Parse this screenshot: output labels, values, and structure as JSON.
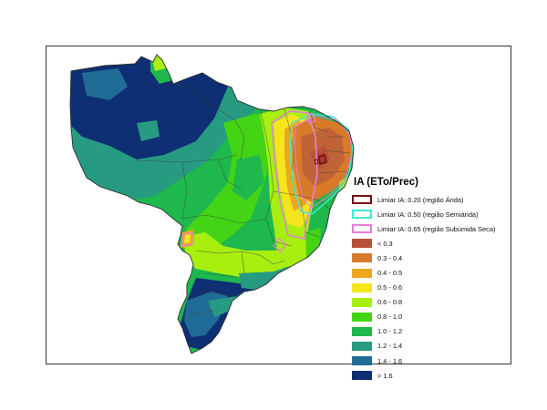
{
  "legend": {
    "title": "IA (ETo/Prec)",
    "thresholds": [
      {
        "label": "Limiar IA: 0.20 (região Árida)",
        "color": "#7a0f14"
      },
      {
        "label": "Limiar IA: 0.50 (região Semiárida)",
        "color": "#3ee8d0"
      },
      {
        "label": "Limiar IA: 0.65 (região Subúmida Seca)",
        "color": "#e57fd6"
      }
    ],
    "classes": [
      {
        "label": "< 0.3",
        "color": "#b8503a"
      },
      {
        "label": "0.3 - 0.4",
        "color": "#d97a2b"
      },
      {
        "label": "0.4 - 0.5",
        "color": "#eba71f"
      },
      {
        "label": "0.5 - 0.6",
        "color": "#f5e61c"
      },
      {
        "label": "0.6 - 0.8",
        "color": "#a8ef10"
      },
      {
        "label": "0.8 - 1.0",
        "color": "#44d416"
      },
      {
        "label": "1.0 - 1.2",
        "color": "#1eb84d"
      },
      {
        "label": "1.2 - 1.4",
        "color": "#279b82"
      },
      {
        "label": "1.4 - 1.6",
        "color": "#1f6d97"
      },
      {
        "label": "> 1.6",
        "color": "#0e2f73"
      }
    ]
  }
}
